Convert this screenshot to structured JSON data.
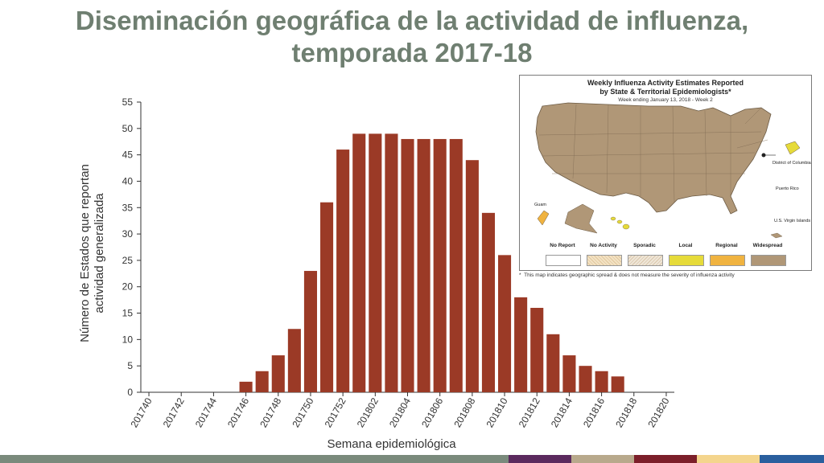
{
  "title_line1": "Diseminación geográfica de la actividad de influenza,",
  "title_line2": "temporada 2017-18",
  "chart_data": {
    "type": "bar",
    "xlabel": "Semana epidemiológica",
    "ylabel_line1": "Número de Estados que reportan",
    "ylabel_line2": "actividad generalizada",
    "ylim": [
      0,
      55
    ],
    "yticks": [
      0,
      5,
      10,
      15,
      20,
      25,
      30,
      35,
      40,
      45,
      50,
      55
    ],
    "bar_color": "#9b3a26",
    "categories": [
      "201740",
      "201741",
      "201742",
      "201743",
      "201744",
      "201745",
      "201746",
      "201747",
      "201748",
      "201749",
      "201750",
      "201751",
      "201752",
      "201801",
      "201802",
      "201803",
      "201804",
      "201805",
      "201806",
      "201807",
      "201808",
      "201809",
      "201810",
      "201811",
      "201812",
      "201813",
      "201814",
      "201815",
      "201816",
      "201817",
      "201818",
      "201819",
      "201820"
    ],
    "tick_labels": [
      "201740",
      "201742",
      "201744",
      "201746",
      "201748",
      "201750",
      "201752",
      "201802",
      "201804",
      "201806",
      "201808",
      "201810",
      "201812",
      "201814",
      "201816",
      "201818",
      "201820"
    ],
    "values": [
      0,
      0,
      0,
      0,
      0,
      0,
      2,
      4,
      7,
      12,
      23,
      36,
      46,
      49,
      49,
      49,
      48,
      48,
      48,
      48,
      44,
      34,
      26,
      18,
      16,
      11,
      7,
      5,
      4,
      3,
      0,
      0,
      0
    ]
  },
  "map": {
    "title_line1": "Weekly Influenza Activity Estimates Reported",
    "title_line2": "by State & Territorial Epidemiologists*",
    "subtitle": "Week ending January 13, 2018 - Week 2",
    "labels": {
      "dc": "District of Columbia",
      "pr": "Puerto Rico",
      "vi": "U.S. Virgin Islands",
      "guam": "Guam"
    },
    "legend": [
      {
        "label": "No Report",
        "color": "#ffffff"
      },
      {
        "label": "No Activity",
        "color": "#f3e2c4"
      },
      {
        "label": "Sporadic",
        "color": "#e9dccb"
      },
      {
        "label": "Local",
        "color": "#e6db3a"
      },
      {
        "label": "Regional",
        "color": "#f0b340"
      },
      {
        "label": "Widespread",
        "color": "#b09777"
      }
    ],
    "note": "This map indicates geographic spread & does not measure the severity of influenza activity"
  },
  "footer_colors": [
    "#7a8a7c",
    "#5b2a5e",
    "#b8a98c",
    "#7c1f2a",
    "#f4d58d",
    "#2a5f9e"
  ]
}
